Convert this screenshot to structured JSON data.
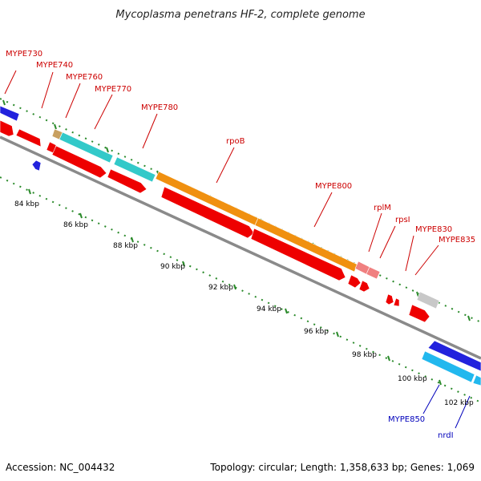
{
  "title": "Mycoplasma penetrans HF-2, complete genome",
  "footer": {
    "accession": "Accession: NC_004432",
    "summary": "Topology: circular; Length: 1,358,633 bp; Genes: 1,069"
  },
  "kbp_labels": [
    "84 kbp",
    "86 kbp",
    "88 kbp",
    "90 kbp",
    "92 kbp",
    "94 kbp",
    "96 kbp",
    "98 kbp",
    "100 kbp",
    "102 kbp"
  ],
  "gene_labels_forward": [
    "MYPE730",
    "MYPE740",
    "MYPE760",
    "MYPE770",
    "MYPE780",
    "rpoB",
    "MYPE800",
    "rplM",
    "rpsI",
    "MYPE830",
    "MYPE835"
  ],
  "gene_labels_reverse": [
    "MYPE850",
    "nrdI"
  ],
  "colors": {
    "label_forward": "#cc0000",
    "label_reverse": "#0000bb",
    "cds": "#ee0000",
    "blue_feature": "#2222dd",
    "cyan_feature": "#33c9c9",
    "orange_feature": "#f09010",
    "pink_feature": "#f08080",
    "gray_feature": "#c8c8c8",
    "light_blue_feature": "#22b8ee",
    "tick": "#2a8a2a",
    "backbone": "#888888"
  }
}
